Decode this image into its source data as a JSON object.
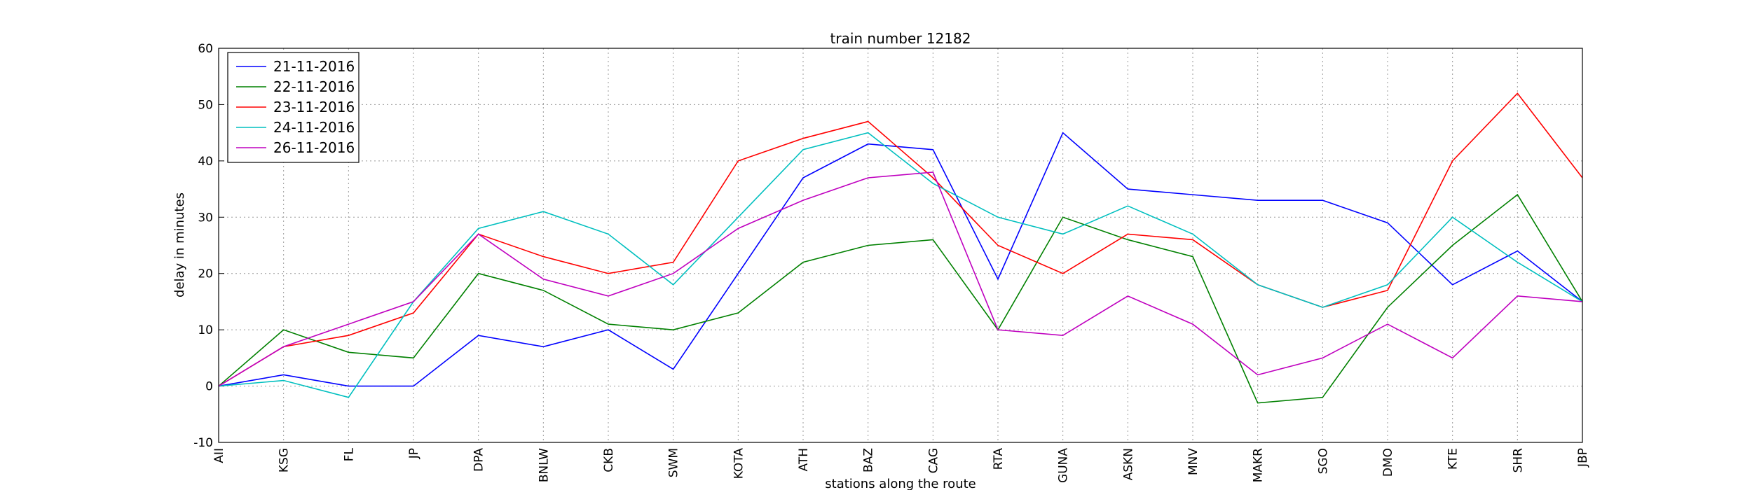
{
  "chart_data": {
    "type": "line",
    "title": "train number 12182",
    "x_label": "stations along the route",
    "y_label": "delay in minutes",
    "categories": [
      "AII",
      "KSG",
      "FL",
      "JP",
      "DPA",
      "BNLW",
      "CKB",
      "SWM",
      "KOTA",
      "ATH",
      "BAZ",
      "CAG",
      "RTA",
      "GUNA",
      "ASKN",
      "MNV",
      "MAKR",
      "SGO",
      "DMO",
      "KTE",
      "SHR",
      "JBP"
    ],
    "series": [
      {
        "name": "21-11-2016",
        "color": "#0000ff",
        "values": [
          0,
          2,
          0,
          0,
          9,
          7,
          10,
          3,
          20,
          37,
          43,
          42,
          19,
          45,
          35,
          34,
          33,
          33,
          29,
          18,
          24,
          15
        ]
      },
      {
        "name": "22-11-2016",
        "color": "#008000",
        "values": [
          0,
          10,
          6,
          5,
          20,
          17,
          11,
          10,
          13,
          22,
          25,
          26,
          10,
          30,
          26,
          23,
          -3,
          -2,
          14,
          25,
          34,
          15
        ]
      },
      {
        "name": "23-11-2016",
        "color": "#ff0000",
        "values": [
          0,
          7,
          9,
          13,
          27,
          23,
          20,
          22,
          40,
          44,
          47,
          37,
          25,
          20,
          27,
          26,
          18,
          14,
          17,
          40,
          52,
          37
        ]
      },
      {
        "name": "24-11-2016",
        "color": "#00bfbf",
        "values": [
          0,
          1,
          -2,
          15,
          28,
          31,
          27,
          18,
          30,
          42,
          45,
          36,
          30,
          27,
          32,
          27,
          18,
          14,
          18,
          30,
          22,
          15
        ]
      },
      {
        "name": "26-11-2016",
        "color": "#bf00bf",
        "values": [
          0,
          7,
          11,
          15,
          27,
          19,
          16,
          20,
          28,
          33,
          37,
          38,
          10,
          9,
          16,
          11,
          2,
          5,
          11,
          5,
          16,
          15
        ]
      }
    ],
    "ylim": [
      -10,
      60
    ],
    "yticks": [
      -10,
      0,
      10,
      20,
      30,
      40,
      50,
      60
    ],
    "grid": true,
    "legend": "upper-left"
  }
}
